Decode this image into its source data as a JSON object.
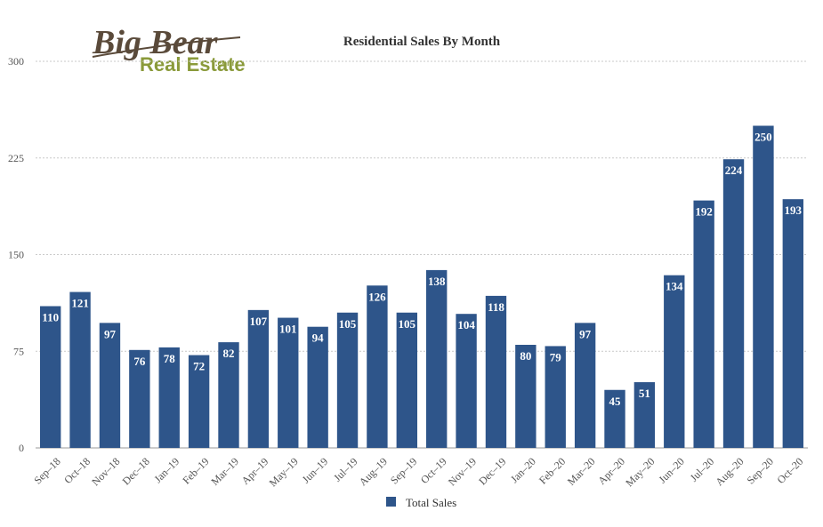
{
  "logo": {
    "line1": "Big Bear",
    "line2": "Real Estate",
    "suffix": ".com"
  },
  "colors": {
    "bar": "#2e558a",
    "grid": "#c9c9c9",
    "logo_brown": "#5a4a3a",
    "logo_green": "#8a9a3a"
  },
  "chart_data": {
    "type": "bar",
    "title": "Residential Sales By Month",
    "xlabel": "",
    "ylabel": "",
    "ylim": [
      0,
      300
    ],
    "yticks": [
      0,
      75,
      150,
      225,
      300
    ],
    "grid": true,
    "legend_position": "bottom-center",
    "categories": [
      "Sep–18",
      "Oct–18",
      "Nov–18",
      "Dec–18",
      "Jan–19",
      "Feb–19",
      "Mar–19",
      "Apr–19",
      "May–19",
      "Jun–19",
      "Jul–19",
      "Aug–19",
      "Sep–19",
      "Oct–19",
      "Nov–19",
      "Dec–19",
      "Jan–20",
      "Feb–20",
      "Mar–20",
      "Apr–20",
      "May–20",
      "Jun–20",
      "Jul–20",
      "Aug–20",
      "Sep–20",
      "Oct–20"
    ],
    "series": [
      {
        "name": "Total Sales",
        "values": [
          110,
          121,
          97,
          76,
          78,
          72,
          82,
          107,
          101,
          94,
          105,
          126,
          105,
          138,
          104,
          118,
          80,
          79,
          97,
          45,
          51,
          134,
          192,
          224,
          250,
          193
        ]
      }
    ]
  }
}
